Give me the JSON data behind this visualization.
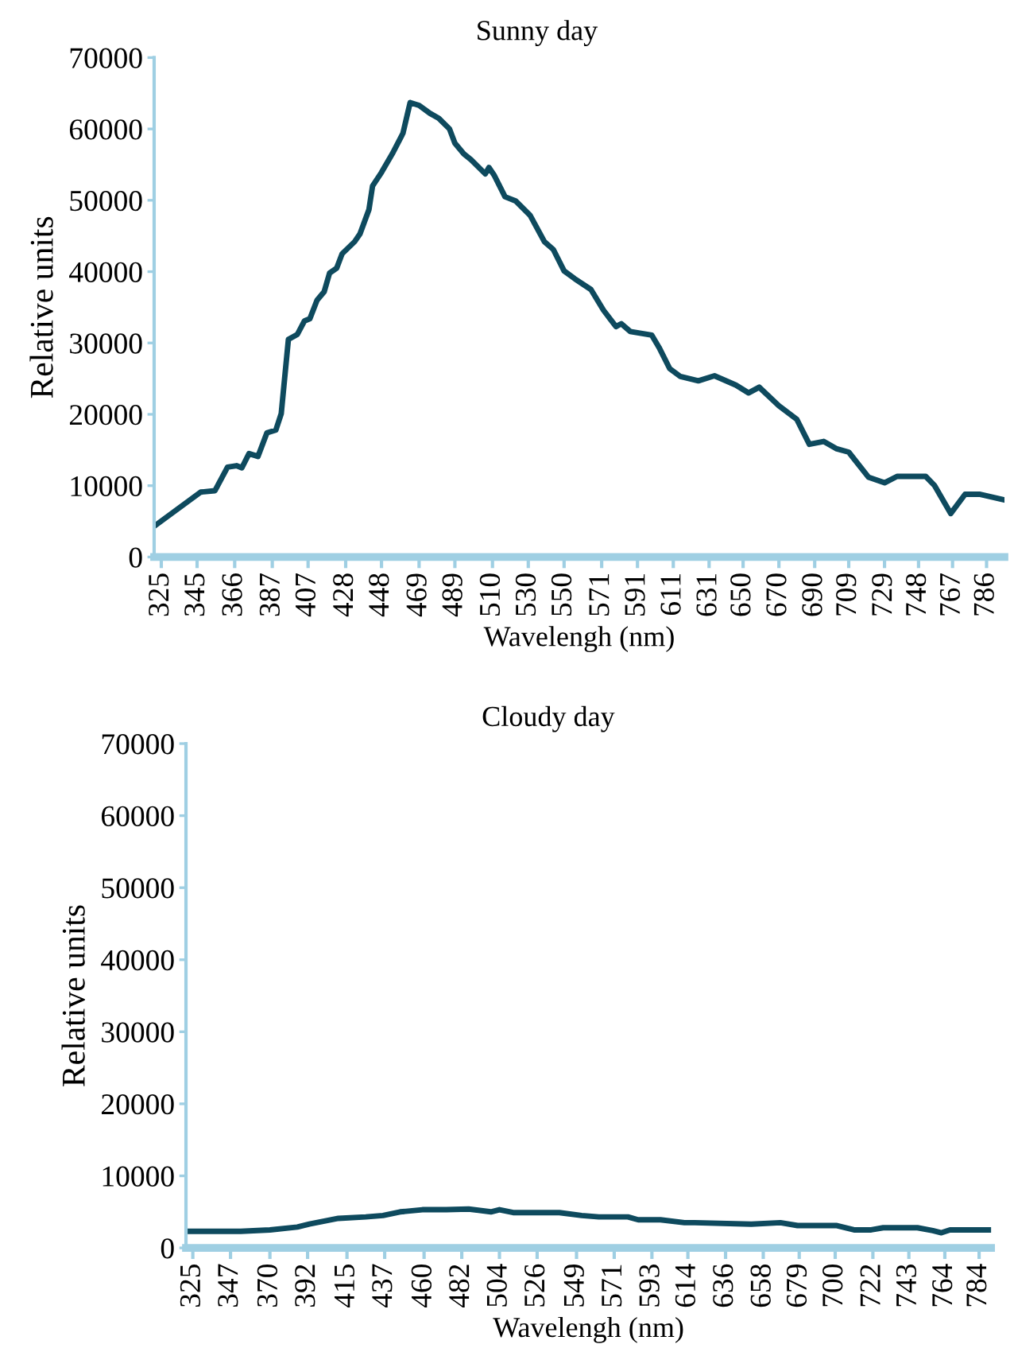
{
  "chart_data": [
    {
      "type": "line",
      "title": "Sunny day",
      "xlabel": "Wavelengh (nm)",
      "ylabel": "Relative units",
      "x": [
        321,
        347,
        355,
        362,
        367,
        370,
        374,
        379,
        384,
        389,
        392,
        396,
        401,
        405,
        408,
        412,
        416,
        419,
        423,
        426,
        433,
        436,
        441,
        443,
        448,
        454,
        460,
        464,
        469,
        475,
        480,
        486,
        489,
        494,
        498,
        506,
        508,
        511,
        517,
        523,
        531,
        539,
        544,
        550,
        556,
        565,
        572,
        579,
        582,
        587,
        599,
        603,
        609,
        615,
        625,
        634,
        646,
        653,
        659,
        670,
        680,
        687,
        695,
        702,
        709,
        720,
        729,
        736,
        752,
        757,
        766,
        774,
        782,
        796
      ],
      "series": [
        {
          "color": "#0e4a5e",
          "values": [
            4300,
            9100,
            9300,
            12600,
            12800,
            12500,
            14500,
            14100,
            17400,
            17800,
            20100,
            30500,
            31200,
            33100,
            33400,
            36000,
            37200,
            39800,
            40500,
            42500,
            44200,
            45300,
            48700,
            52000,
            53900,
            56500,
            59400,
            63700,
            63300,
            62200,
            61500,
            60000,
            58000,
            56500,
            55700,
            53700,
            54600,
            53500,
            50500,
            49900,
            47900,
            44200,
            43100,
            40100,
            39000,
            37500,
            34600,
            32300,
            32700,
            31600,
            31100,
            29400,
            26400,
            25300,
            24700,
            25400,
            24100,
            23000,
            23800,
            21200,
            19300,
            15800,
            16200,
            15200,
            14700,
            11200,
            10400,
            11300,
            11300,
            10000,
            6100,
            8800,
            8800,
            8000
          ]
        }
      ],
      "xlim": [
        321,
        796
      ],
      "xticks": [
        325,
        345,
        366,
        387,
        407,
        428,
        448,
        469,
        489,
        510,
        530,
        550,
        571,
        591,
        611,
        631,
        650,
        670,
        690,
        709,
        729,
        748,
        767,
        786
      ],
      "ylim": [
        0,
        70000
      ],
      "yticks": [
        0,
        10000,
        20000,
        30000,
        40000,
        50000,
        60000,
        70000
      ]
    },
    {
      "type": "line",
      "title": "Cloudy day",
      "xlabel": "Wavelengh (nm)",
      "ylabel": "Relative units",
      "x": [
        321,
        353,
        370,
        386,
        393,
        410,
        426,
        436,
        446,
        459,
        473,
        486,
        499,
        504,
        512,
        539,
        552,
        562,
        579,
        585,
        598,
        612,
        618,
        651,
        668,
        678,
        701,
        711,
        721,
        728,
        748,
        757,
        762,
        767,
        791
      ],
      "series": [
        {
          "color": "#0e4a5e",
          "values": [
            2300,
            2300,
            2500,
            2900,
            3300,
            4100,
            4300,
            4500,
            5000,
            5300,
            5300,
            5400,
            5000,
            5300,
            4900,
            4900,
            4500,
            4300,
            4300,
            3900,
            3900,
            3500,
            3500,
            3300,
            3500,
            3100,
            3100,
            2500,
            2500,
            2800,
            2800,
            2400,
            2100,
            2500,
            2500
          ]
        }
      ],
      "xlim": [
        321,
        791
      ],
      "xticks": [
        325,
        347,
        370,
        392,
        415,
        437,
        460,
        482,
        504,
        526,
        549,
        571,
        593,
        614,
        636,
        658,
        679,
        700,
        722,
        743,
        764,
        784
      ],
      "ylim": [
        0,
        70000
      ],
      "yticks": [
        0,
        10000,
        20000,
        30000,
        40000,
        50000,
        60000,
        70000
      ]
    }
  ]
}
